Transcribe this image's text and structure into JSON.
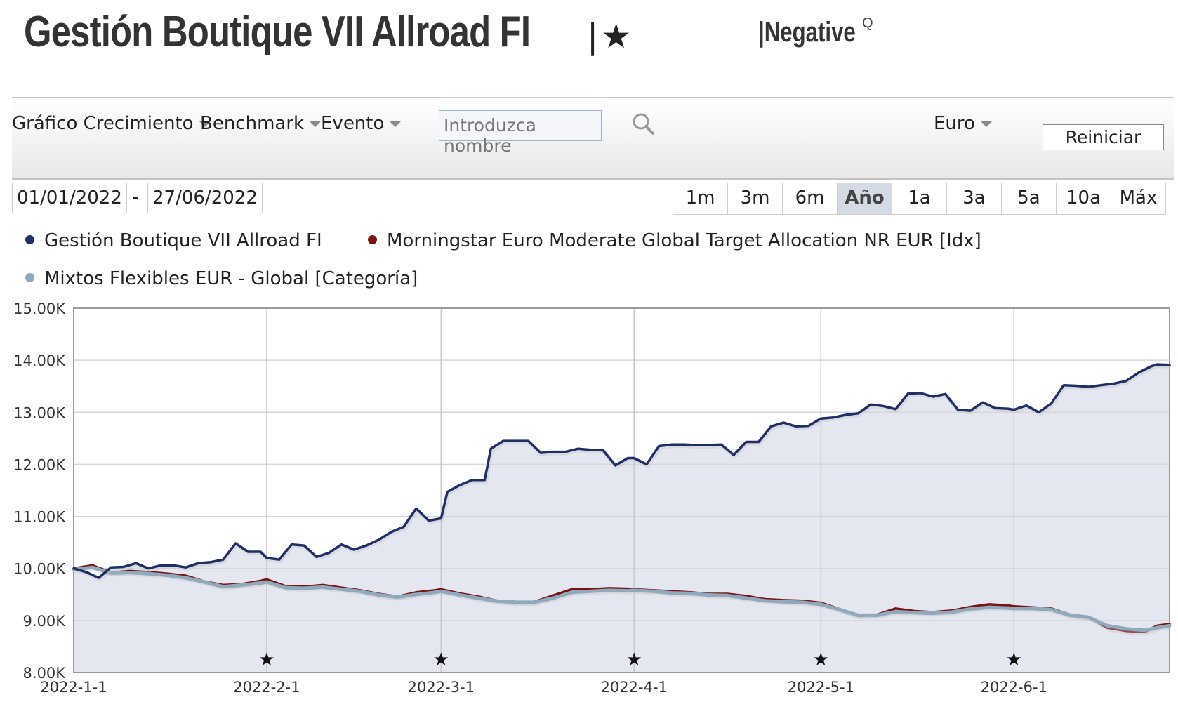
{
  "header": {
    "title": "Gestión Boutique VII Allroad FI",
    "rating_bar": "|",
    "rating_star": "★",
    "medal": "|Negative",
    "medal_superscript": "Q"
  },
  "toolbar": {
    "menu_growth": "Gráfico Crecimiento",
    "menu_benchmark": "Benchmark",
    "menu_event": "Evento",
    "search_placeholder": "Introduzca nombre",
    "currency": "Euro",
    "reset_label": "Reiniciar"
  },
  "date_range": {
    "start": "01/01/2022",
    "separator": "-",
    "end": "27/06/2022"
  },
  "periods": [
    "1m",
    "3m",
    "6m",
    "Año",
    "1a",
    "3a",
    "5a",
    "10a",
    "Máx"
  ],
  "active_period": "Año",
  "colors": {
    "fund": "#1f2f66",
    "benchmark": "#7a1212",
    "category": "#8fa9bd",
    "fund_fill": "#e4e7f0"
  },
  "chart_data": {
    "type": "line",
    "ylim": [
      8000,
      15000
    ],
    "y_ticks": [
      8000,
      9000,
      10000,
      11000,
      12000,
      13000,
      14000,
      15000
    ],
    "y_tick_labels": [
      "8.00K",
      "9.00K",
      "10.00K",
      "11.00K",
      "12.00K",
      "13.00K",
      "14.00K",
      "15.00K"
    ],
    "x_tick_labels": [
      "2022-1-1",
      "2022-2-1",
      "2022-3-1",
      "2022-4-1",
      "2022-5-1",
      "2022-6-1"
    ],
    "x_tick_days": [
      0,
      31,
      59,
      90,
      120,
      151
    ],
    "x_range_days": [
      0,
      176
    ],
    "event_markers_days": [
      31,
      59,
      90,
      120,
      151
    ],
    "grid": true,
    "series": [
      {
        "name": "Gestión Boutique VII Allroad FI",
        "x": [
          0,
          2,
          4,
          6,
          8,
          10,
          12,
          14,
          16,
          18,
          20,
          22,
          24,
          26,
          28,
          30,
          31,
          33,
          35,
          37,
          39,
          41,
          43,
          45,
          47,
          49,
          51,
          53,
          55,
          57,
          59,
          60,
          62,
          64,
          66,
          67,
          69,
          71,
          73,
          75,
          77,
          79,
          81,
          83,
          85,
          87,
          89,
          90,
          92,
          94,
          96,
          98,
          100,
          102,
          104,
          106,
          108,
          110,
          112,
          114,
          116,
          118,
          120,
          122,
          124,
          126,
          128,
          130,
          132,
          134,
          136,
          138,
          140,
          142,
          144,
          146,
          148,
          150,
          151,
          153,
          155,
          157,
          159,
          161,
          163,
          165,
          167,
          169,
          171,
          173,
          174,
          176
        ],
        "y": [
          10000,
          9930,
          9820,
          10020,
          10030,
          10100,
          10000,
          10060,
          10060,
          10020,
          10100,
          10120,
          10170,
          10480,
          10320,
          10320,
          10200,
          10170,
          10460,
          10440,
          10220,
          10300,
          10460,
          10360,
          10440,
          10550,
          10700,
          10800,
          11150,
          10920,
          10960,
          11470,
          11600,
          11700,
          11700,
          12300,
          12450,
          12450,
          12450,
          12220,
          12240,
          12240,
          12300,
          12280,
          12270,
          11980,
          12120,
          12120,
          12000,
          12350,
          12380,
          12380,
          12370,
          12370,
          12380,
          12180,
          12430,
          12430,
          12730,
          12800,
          12730,
          12740,
          12880,
          12900,
          12950,
          12980,
          13150,
          13120,
          13060,
          13360,
          13370,
          13300,
          13350,
          13050,
          13030,
          13190,
          13080,
          13070,
          13050,
          13130,
          13000,
          13170,
          13520,
          13510,
          13490,
          13520,
          13550,
          13600,
          13760,
          13880,
          13920,
          13910
        ]
      },
      {
        "name": "Morningstar Euro Moderate Global Target Allocation NR EUR [Idx]",
        "x": [
          0,
          3,
          6,
          9,
          12,
          15,
          18,
          21,
          24,
          27,
          30,
          31,
          34,
          37,
          40,
          43,
          46,
          49,
          52,
          55,
          58,
          59,
          62,
          65,
          68,
          71,
          74,
          77,
          80,
          83,
          86,
          89,
          90,
          93,
          96,
          99,
          102,
          105,
          108,
          111,
          114,
          117,
          120,
          123,
          126,
          129,
          132,
          135,
          138,
          141,
          144,
          147,
          150,
          151,
          154,
          157,
          160,
          163,
          166,
          169,
          172,
          174,
          176
        ],
        "y": [
          10000,
          10060,
          9920,
          9950,
          9930,
          9900,
          9860,
          9750,
          9680,
          9700,
          9760,
          9790,
          9660,
          9650,
          9680,
          9630,
          9580,
          9510,
          9460,
          9540,
          9580,
          9600,
          9520,
          9460,
          9380,
          9360,
          9360,
          9480,
          9600,
          9600,
          9620,
          9610,
          9600,
          9580,
          9560,
          9540,
          9510,
          9510,
          9470,
          9410,
          9390,
          9380,
          9340,
          9220,
          9090,
          9110,
          9230,
          9180,
          9160,
          9190,
          9260,
          9310,
          9290,
          9270,
          9250,
          9230,
          9110,
          9070,
          8860,
          8800,
          8780,
          8900,
          8930
        ]
      },
      {
        "name": "Mixtos Flexibles EUR - Global [Categoría]",
        "x": [
          0,
          3,
          6,
          9,
          12,
          15,
          18,
          21,
          24,
          27,
          30,
          31,
          34,
          37,
          40,
          43,
          46,
          49,
          52,
          55,
          58,
          59,
          62,
          65,
          68,
          71,
          74,
          77,
          80,
          83,
          86,
          89,
          90,
          93,
          96,
          99,
          102,
          105,
          108,
          111,
          114,
          117,
          120,
          123,
          126,
          129,
          132,
          135,
          138,
          141,
          144,
          147,
          150,
          151,
          154,
          157,
          160,
          163,
          166,
          169,
          172,
          174,
          176
        ],
        "y": [
          9980,
          10020,
          9910,
          9920,
          9900,
          9870,
          9820,
          9740,
          9650,
          9680,
          9720,
          9740,
          9630,
          9620,
          9640,
          9600,
          9560,
          9490,
          9450,
          9500,
          9540,
          9560,
          9490,
          9430,
          9370,
          9350,
          9350,
          9430,
          9540,
          9560,
          9580,
          9570,
          9580,
          9560,
          9530,
          9520,
          9490,
          9480,
          9430,
          9380,
          9360,
          9350,
          9310,
          9210,
          9100,
          9100,
          9170,
          9150,
          9140,
          9160,
          9220,
          9250,
          9240,
          9230,
          9230,
          9210,
          9100,
          9060,
          8900,
          8840,
          8810,
          8860,
          8900
        ]
      }
    ]
  }
}
